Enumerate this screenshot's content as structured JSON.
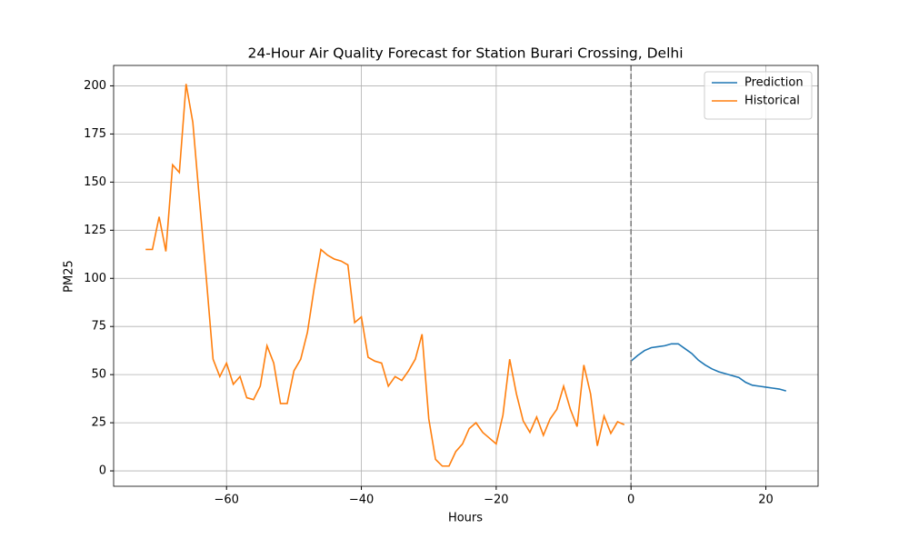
{
  "chart_data": {
    "type": "line",
    "title": "24-Hour Air Quality Forecast for Station Burari Crossing, Delhi",
    "xlabel": "Hours",
    "ylabel": "PM25",
    "series": [
      {
        "name": "Prediction",
        "color": "#1f77b4",
        "x": [
          0,
          1,
          2,
          3,
          4,
          5,
          6,
          7,
          8,
          9,
          10,
          11,
          12,
          13,
          14,
          15,
          16,
          17,
          18,
          19,
          20,
          21,
          22,
          23
        ],
        "values": [
          57,
          60,
          62.5,
          64,
          64.5,
          65,
          66,
          66,
          63.5,
          61,
          57.5,
          55,
          53,
          51.5,
          50.5,
          49.5,
          48.5,
          46,
          44.5,
          44,
          43.5,
          43,
          42.5,
          41.5
        ]
      },
      {
        "name": "Historical",
        "color": "#ff7f0e",
        "x": [
          -72,
          -71,
          -70,
          -69,
          -68,
          -67,
          -66,
          -65,
          -64,
          -63,
          -62,
          -61,
          -60,
          -59,
          -58,
          -57,
          -56,
          -55,
          -54,
          -53,
          -52,
          -51,
          -50,
          -49,
          -48,
          -47,
          -46,
          -45,
          -44,
          -43,
          -42,
          -41,
          -40,
          -39,
          -38,
          -37,
          -36,
          -35,
          -34,
          -33,
          -32,
          -31,
          -30,
          -29,
          -28,
          -27,
          -26,
          -25,
          -24,
          -23,
          -22,
          -21,
          -20,
          -19,
          -18,
          -17,
          -16,
          -15,
          -14,
          -13,
          -12,
          -11,
          -10,
          -9,
          -8,
          -7,
          -6,
          -5,
          -4,
          -3,
          -2,
          -1
        ],
        "values": [
          115,
          115,
          132,
          114,
          159,
          155,
          201,
          181,
          140,
          100,
          58,
          49,
          56,
          45,
          49,
          38,
          37,
          44,
          65,
          56,
          35,
          35,
          52,
          58,
          72,
          95,
          115,
          112,
          110,
          109,
          107,
          77,
          80,
          59,
          57,
          56,
          44,
          49,
          47,
          52,
          58,
          71,
          27,
          6,
          2.5,
          2.5,
          10,
          14,
          22,
          25,
          20,
          17,
          14,
          29,
          58,
          40,
          26,
          20,
          28,
          18.5,
          27,
          32,
          44,
          32,
          23,
          55,
          40,
          13,
          28.5,
          19.5,
          25.5,
          24
        ]
      }
    ],
    "vline": 0,
    "vline_color": "#808080",
    "xlim": [
      -76.75,
      27.75
    ],
    "xticks": [
      {
        "value": -60,
        "label": "−60"
      },
      {
        "value": -40,
        "label": "−40"
      },
      {
        "value": -20,
        "label": "−20"
      },
      0,
      20
    ],
    "ylim": [
      -8,
      210.6
    ],
    "yticks": [
      0,
      25,
      50,
      75,
      100,
      125,
      150,
      175,
      200
    ],
    "grid": true,
    "legend": "upper right"
  }
}
